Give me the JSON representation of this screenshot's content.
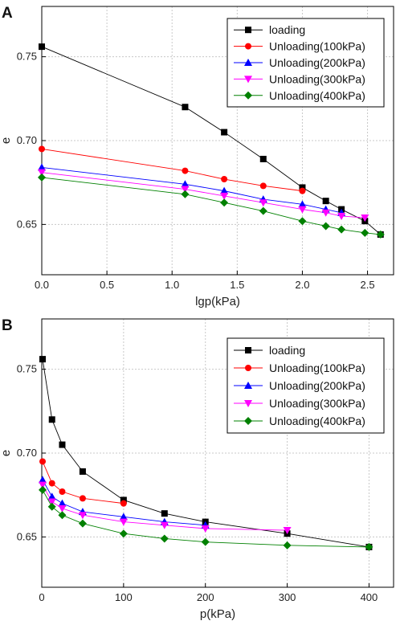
{
  "chart_data": [
    {
      "panel": "A",
      "type": "line",
      "xlabel": "lgp(kPa)",
      "ylabel": "e",
      "xlim": [
        0,
        2.7
      ],
      "ylim": [
        0.62,
        0.78
      ],
      "xticks": [
        "0.0",
        "0.5",
        "1.0",
        "1.5",
        "2.0",
        "2.5"
      ],
      "yticks": [
        "0.65",
        "0.70",
        "0.75"
      ],
      "grid": true,
      "legend_position": "top-right",
      "series": [
        {
          "name": "loading",
          "color": "#000000",
          "marker": "square",
          "x": [
            0,
            1.1,
            1.4,
            1.7,
            2.0,
            2.18,
            2.3,
            2.48,
            2.6
          ],
          "y": [
            0.756,
            0.72,
            0.705,
            0.689,
            0.672,
            0.664,
            0.659,
            0.652,
            0.644
          ]
        },
        {
          "name": "Unloading(100kPa)",
          "color": "#ff0000",
          "marker": "circle",
          "x": [
            0,
            1.1,
            1.4,
            1.7,
            2.0
          ],
          "y": [
            0.695,
            0.682,
            0.677,
            0.673,
            0.67
          ]
        },
        {
          "name": "Unloading(200kPa)",
          "color": "#0000ff",
          "marker": "triangle-up",
          "x": [
            0,
            1.1,
            1.4,
            1.7,
            2.0,
            2.18,
            2.3
          ],
          "y": [
            0.684,
            0.674,
            0.67,
            0.665,
            0.662,
            0.659,
            0.657
          ]
        },
        {
          "name": "Unloading(300kPa)",
          "color": "#ff00ff",
          "marker": "triangle-down",
          "x": [
            0,
            1.1,
            1.4,
            1.7,
            2.0,
            2.18,
            2.3,
            2.48
          ],
          "y": [
            0.681,
            0.671,
            0.667,
            0.663,
            0.659,
            0.657,
            0.655,
            0.654
          ]
        },
        {
          "name": "Unloading(400kPa)",
          "color": "#008000",
          "marker": "diamond",
          "x": [
            0,
            1.1,
            1.4,
            1.7,
            2.0,
            2.18,
            2.3,
            2.48,
            2.6
          ],
          "y": [
            0.678,
            0.668,
            0.663,
            0.658,
            0.652,
            0.649,
            0.647,
            0.645,
            0.644
          ]
        }
      ]
    },
    {
      "panel": "B",
      "type": "line",
      "xlabel": "p(kPa)",
      "ylabel": "e",
      "xlim": [
        0,
        430
      ],
      "ylim": [
        0.62,
        0.78
      ],
      "xticks": [
        "0",
        "100",
        "200",
        "300",
        "400"
      ],
      "yticks": [
        "0.65",
        "0.70",
        "0.75"
      ],
      "grid": true,
      "legend_position": "top-right",
      "series": [
        {
          "name": "loading",
          "color": "#000000",
          "marker": "square",
          "x": [
            1,
            12.5,
            25,
            50,
            100,
            150,
            200,
            300,
            400
          ],
          "y": [
            0.756,
            0.72,
            0.705,
            0.689,
            0.672,
            0.664,
            0.659,
            0.652,
            0.644
          ]
        },
        {
          "name": "Unloading(100kPa)",
          "color": "#ff0000",
          "marker": "circle",
          "x": [
            1,
            12.5,
            25,
            50,
            100
          ],
          "y": [
            0.695,
            0.682,
            0.677,
            0.673,
            0.67
          ]
        },
        {
          "name": "Unloading(200kPa)",
          "color": "#0000ff",
          "marker": "triangle-up",
          "x": [
            1,
            12.5,
            25,
            50,
            100,
            150,
            200
          ],
          "y": [
            0.684,
            0.674,
            0.67,
            0.665,
            0.662,
            0.659,
            0.657
          ]
        },
        {
          "name": "Unloading(300kPa)",
          "color": "#ff00ff",
          "marker": "triangle-down",
          "x": [
            1,
            12.5,
            25,
            50,
            100,
            150,
            200,
            300
          ],
          "y": [
            0.681,
            0.671,
            0.667,
            0.663,
            0.659,
            0.657,
            0.655,
            0.654
          ]
        },
        {
          "name": "Unloading(400kPa)",
          "color": "#008000",
          "marker": "diamond",
          "x": [
            1,
            12.5,
            25,
            50,
            100,
            150,
            200,
            300,
            400
          ],
          "y": [
            0.678,
            0.668,
            0.663,
            0.658,
            0.652,
            0.649,
            0.647,
            0.645,
            0.644
          ]
        }
      ]
    }
  ]
}
